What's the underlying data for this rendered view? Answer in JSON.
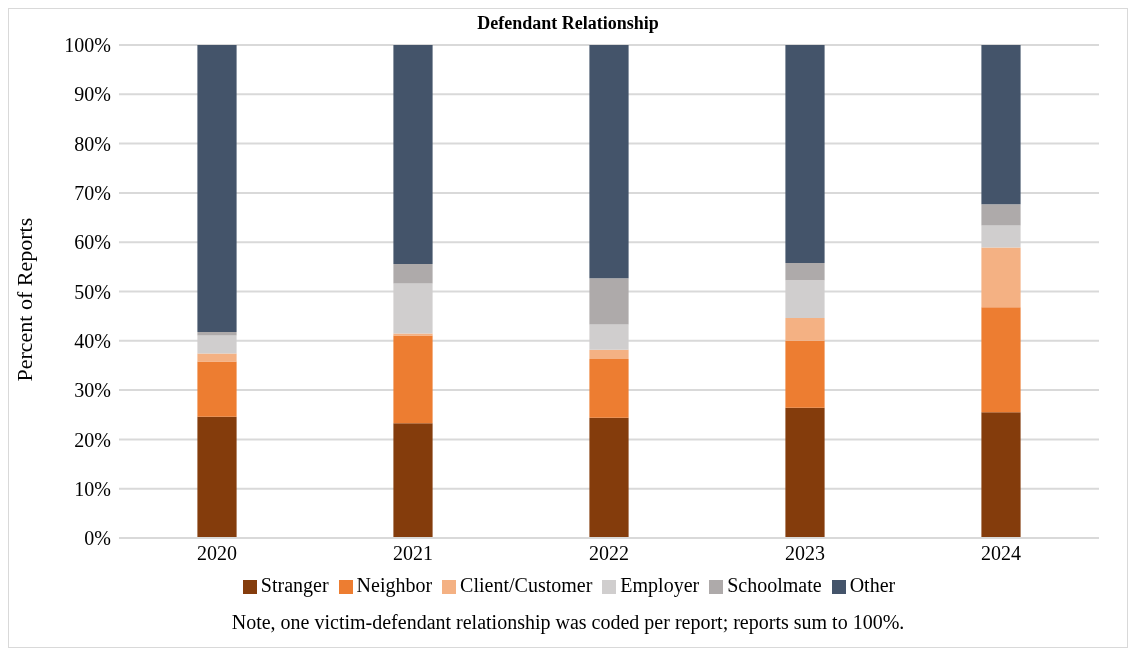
{
  "chart_data": {
    "type": "bar",
    "title": "Defendant Relationship",
    "ylabel": "Percent of Reports",
    "categories": [
      "2020",
      "2021",
      "2022",
      "2023",
      "2024"
    ],
    "stacked": true,
    "series": [
      {
        "name": "Stranger",
        "color": "#843c0c",
        "values": [
          24.6,
          23.3,
          24.4,
          26.4,
          25.5
        ]
      },
      {
        "name": "Neighbor",
        "color": "#ed7d31",
        "values": [
          11.2,
          17.8,
          11.9,
          13.6,
          21.3
        ]
      },
      {
        "name": "Client/Customer",
        "color": "#f4b183",
        "values": [
          1.6,
          0.4,
          1.9,
          4.6,
          12.1
        ]
      },
      {
        "name": "Employer",
        "color": "#d0cece",
        "values": [
          3.7,
          10.1,
          5.1,
          7.7,
          4.5
        ]
      },
      {
        "name": "Schoolmate",
        "color": "#aeaaaa",
        "values": [
          0.7,
          4.0,
          9.4,
          3.5,
          4.3
        ]
      },
      {
        "name": "Other",
        "color": "#44546a",
        "values": [
          58.2,
          44.4,
          47.3,
          44.2,
          32.3
        ]
      }
    ],
    "ylim": [
      0,
      100
    ],
    "yticks": [
      {
        "value": 0,
        "label": "0%"
      },
      {
        "value": 10,
        "label": "10%"
      },
      {
        "value": 20,
        "label": "20%"
      },
      {
        "value": 30,
        "label": "30%"
      },
      {
        "value": 40,
        "label": "40%"
      },
      {
        "value": 50,
        "label": "50%"
      },
      {
        "value": 60,
        "label": "60%"
      },
      {
        "value": 70,
        "label": "70%"
      },
      {
        "value": 80,
        "label": "80%"
      },
      {
        "value": 90,
        "label": "90%"
      },
      {
        "value": 100,
        "label": "100%"
      }
    ],
    "grid": "y",
    "legend": "bottom",
    "annotations": [
      "Note, one victim-defendant relationship was coded per report; reports sum to 100%."
    ]
  }
}
